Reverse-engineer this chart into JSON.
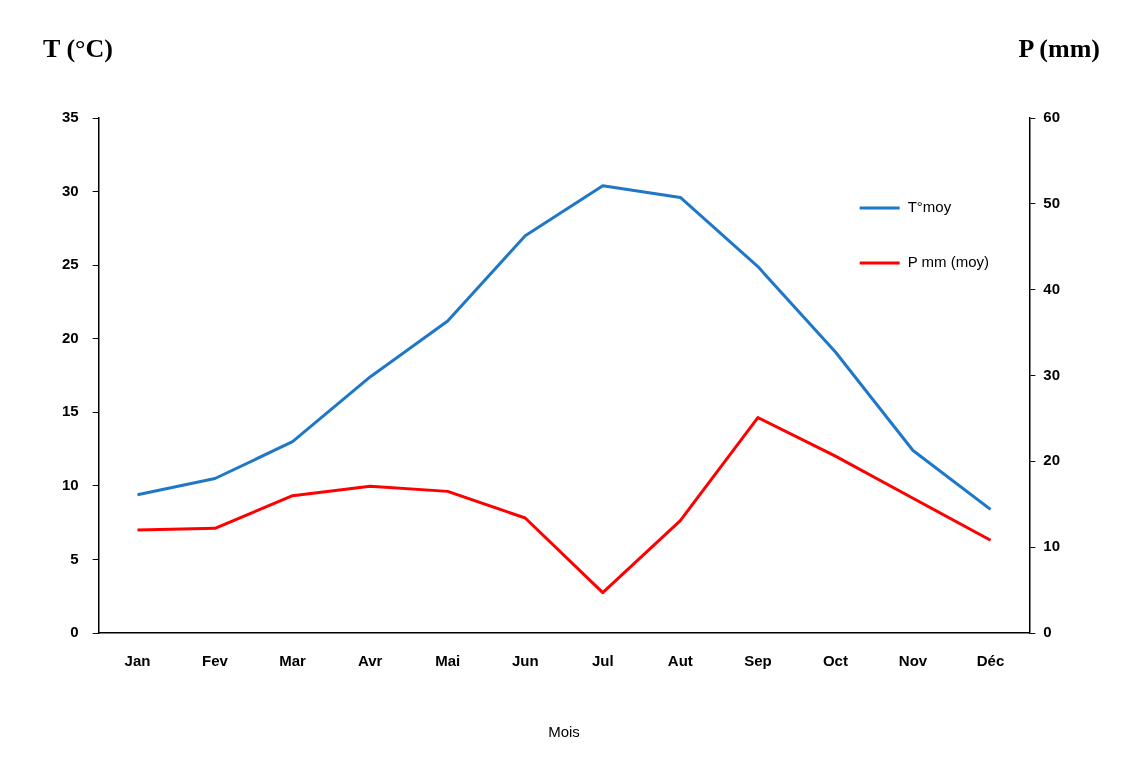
{
  "chart_data": {
    "type": "line",
    "xlabel": "Mois",
    "ylabel": "T (°C)",
    "y2label": "P (mm)",
    "categories": [
      "Jan",
      "Fev",
      "Mar",
      "Avr",
      "Mai",
      "Jun",
      "Jul",
      "Aut",
      "Sep",
      "Oct",
      "Nov",
      "Déc"
    ],
    "series": [
      {
        "name": "T°moy",
        "color": "#1f77c8",
        "values": [
          9.4,
          10.5,
          13.0,
          17.4,
          21.2,
          27.0,
          30.4,
          29.6,
          24.9,
          19.1,
          12.4,
          8.4
        ]
      },
      {
        "name": "P mm (moy)",
        "color": "#ff0000",
        "axis": "y2",
        "values": [
          12,
          12.2,
          16,
          17.1,
          16.5,
          13.4,
          4.7,
          13.1,
          25.1,
          20.6,
          15.7,
          10.8
        ]
      }
    ],
    "ylim": [
      0,
      35
    ],
    "yticks": [
      0,
      5,
      10,
      15,
      20,
      25,
      30,
      35
    ],
    "y2lim": [
      0,
      60
    ],
    "y2ticks": [
      0,
      10,
      20,
      30,
      40,
      50,
      60
    ],
    "grid": false,
    "legend": "top right",
    "marker": "none",
    "line_style": "solid"
  }
}
